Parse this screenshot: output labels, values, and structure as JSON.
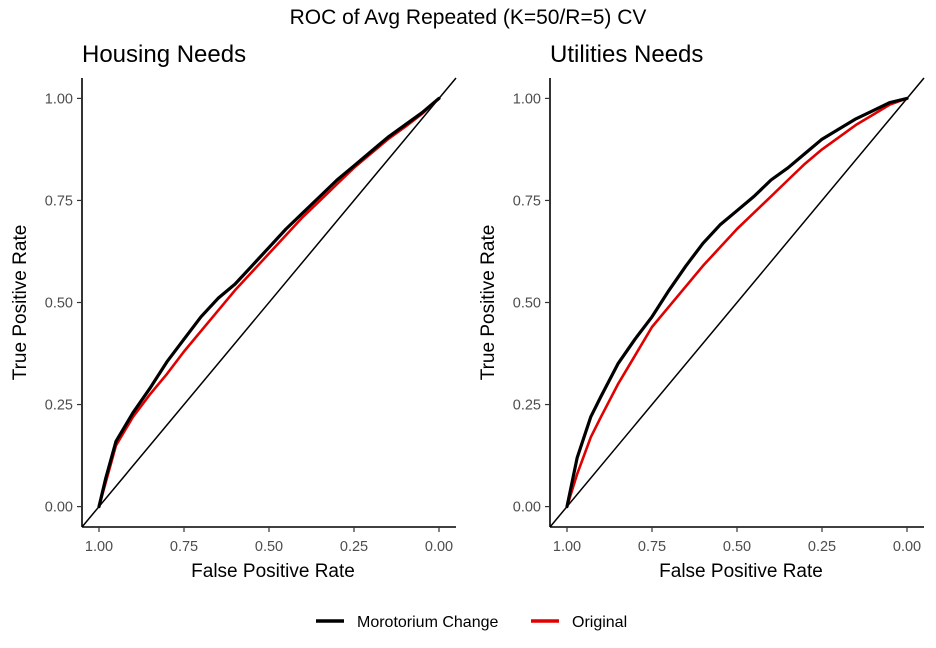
{
  "title": "ROC of Avg Repeated (K=50/R=5) CV",
  "legend": {
    "position": "bottom",
    "items": [
      {
        "label": "Morotorium Change",
        "color": "#000000"
      },
      {
        "label": "Original",
        "color": "#e00000"
      }
    ]
  },
  "chart_data": [
    {
      "type": "line",
      "title": "Housing Needs",
      "xlabel": "False Positive Rate",
      "ylabel": "True Positive Rate",
      "xlim": [
        1.0,
        0.0
      ],
      "x_reversed": true,
      "ylim": [
        0.0,
        1.0
      ],
      "x_ticks": [
        "1.00",
        "0.75",
        "0.50",
        "0.25",
        "0.00"
      ],
      "y_ticks": [
        "0.00",
        "0.25",
        "0.50",
        "0.75",
        "1.00"
      ],
      "grid": false,
      "diagonal_reference": true,
      "series": [
        {
          "name": "Morotorium Change",
          "color": "#000000",
          "fpr": [
            1.0,
            0.98,
            0.95,
            0.9,
            0.85,
            0.8,
            0.75,
            0.7,
            0.65,
            0.6,
            0.55,
            0.5,
            0.45,
            0.4,
            0.35,
            0.3,
            0.25,
            0.2,
            0.15,
            0.1,
            0.05,
            0.0
          ],
          "tpr": [
            0.0,
            0.07,
            0.16,
            0.23,
            0.29,
            0.355,
            0.41,
            0.465,
            0.51,
            0.545,
            0.59,
            0.635,
            0.68,
            0.72,
            0.76,
            0.8,
            0.835,
            0.87,
            0.905,
            0.935,
            0.965,
            1.0
          ]
        },
        {
          "name": "Original",
          "color": "#e00000",
          "fpr": [
            1.0,
            0.98,
            0.95,
            0.9,
            0.85,
            0.8,
            0.75,
            0.7,
            0.65,
            0.6,
            0.55,
            0.5,
            0.45,
            0.4,
            0.35,
            0.3,
            0.25,
            0.2,
            0.15,
            0.1,
            0.05,
            0.0
          ],
          "tpr": [
            0.0,
            0.06,
            0.15,
            0.22,
            0.275,
            0.325,
            0.38,
            0.43,
            0.48,
            0.53,
            0.575,
            0.62,
            0.665,
            0.71,
            0.75,
            0.79,
            0.83,
            0.865,
            0.9,
            0.93,
            0.962,
            1.0
          ]
        }
      ]
    },
    {
      "type": "line",
      "title": "Utilities Needs",
      "xlabel": "False Positive Rate",
      "ylabel": "True Positive Rate",
      "xlim": [
        1.0,
        0.0
      ],
      "x_reversed": true,
      "ylim": [
        0.0,
        1.0
      ],
      "x_ticks": [
        "1.00",
        "0.75",
        "0.50",
        "0.25",
        "0.00"
      ],
      "y_ticks": [
        "0.00",
        "0.25",
        "0.50",
        "0.75",
        "1.00"
      ],
      "grid": false,
      "diagonal_reference": true,
      "series": [
        {
          "name": "Morotorium Change",
          "color": "#000000",
          "fpr": [
            1.0,
            0.97,
            0.93,
            0.9,
            0.85,
            0.8,
            0.75,
            0.7,
            0.65,
            0.6,
            0.55,
            0.5,
            0.45,
            0.4,
            0.35,
            0.3,
            0.25,
            0.2,
            0.15,
            0.1,
            0.05,
            0.0
          ],
          "tpr": [
            0.0,
            0.12,
            0.22,
            0.27,
            0.35,
            0.41,
            0.465,
            0.53,
            0.59,
            0.645,
            0.69,
            0.725,
            0.76,
            0.8,
            0.83,
            0.865,
            0.9,
            0.925,
            0.95,
            0.97,
            0.99,
            1.0
          ]
        },
        {
          "name": "Original",
          "color": "#e00000",
          "fpr": [
            1.0,
            0.97,
            0.93,
            0.9,
            0.85,
            0.8,
            0.75,
            0.7,
            0.65,
            0.6,
            0.55,
            0.5,
            0.45,
            0.4,
            0.35,
            0.3,
            0.25,
            0.2,
            0.15,
            0.1,
            0.05,
            0.0
          ],
          "tpr": [
            0.0,
            0.08,
            0.17,
            0.22,
            0.3,
            0.37,
            0.44,
            0.49,
            0.54,
            0.59,
            0.635,
            0.68,
            0.72,
            0.76,
            0.8,
            0.84,
            0.875,
            0.905,
            0.935,
            0.96,
            0.985,
            1.0
          ]
        }
      ]
    }
  ]
}
